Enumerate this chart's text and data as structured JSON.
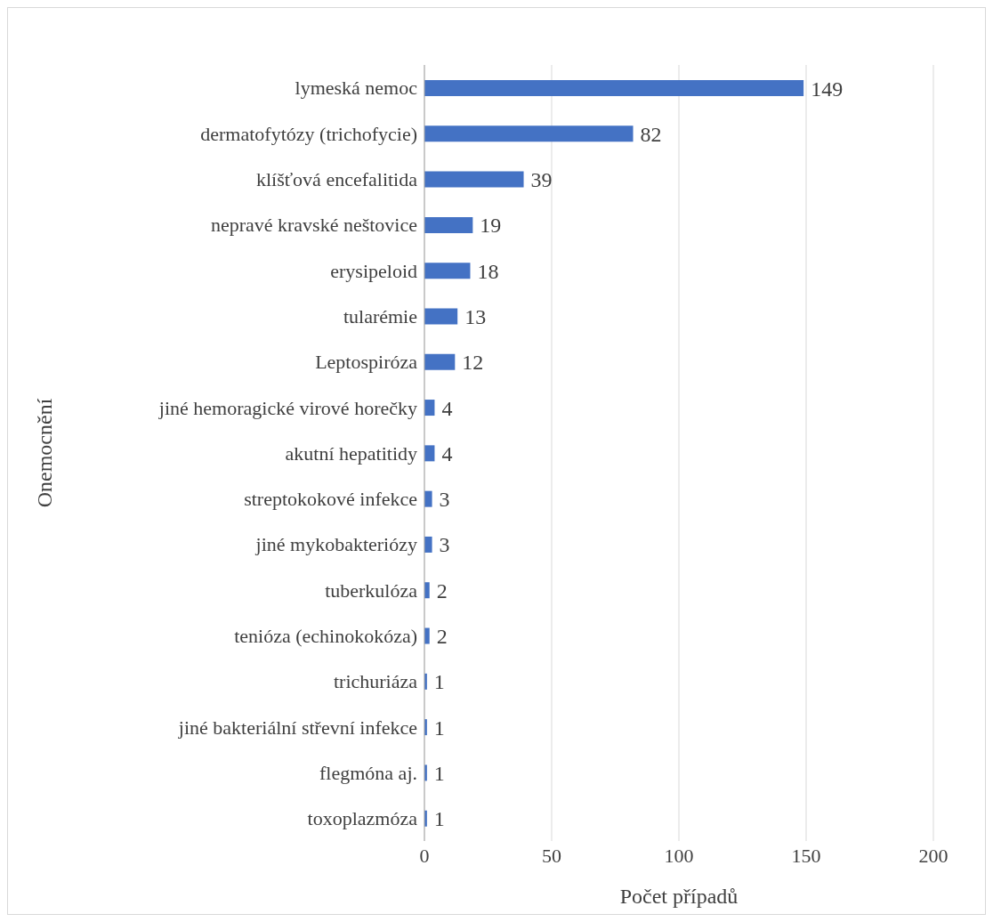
{
  "chart_data": {
    "type": "bar",
    "orientation": "horizontal",
    "xlabel": "Počet případů",
    "ylabel": "Onemocnění",
    "categories": [
      "lymeská nemoc",
      "dermatofytózy (trichofycie)",
      "klíšťová encefalitida",
      "nepravé kravské neštovice",
      "erysipeloid",
      "tularémie",
      "Leptospiróza",
      "jiné hemoragické virové horečky",
      "akutní hepatitidy",
      "streptokokové infekce",
      "jiné mykobakteriózy",
      "tuberkulóza",
      "tenióza (echinokokóza)",
      "trichuriáza",
      "jiné bakteriální střevní infekce",
      "flegmóna aj.",
      "toxoplazmóza"
    ],
    "values": [
      149,
      82,
      39,
      19,
      18,
      13,
      12,
      4,
      4,
      3,
      3,
      2,
      2,
      1,
      1,
      1,
      1
    ],
    "color": "#4472c4",
    "xlim": [
      0,
      200
    ],
    "xticks": [
      0,
      50,
      100,
      150,
      200
    ],
    "grid": "x",
    "data_labels": true,
    "legend": false
  }
}
